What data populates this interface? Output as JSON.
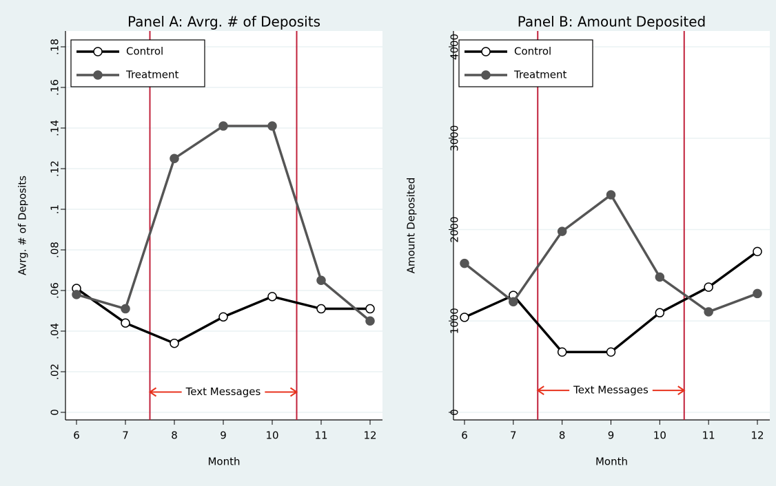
{
  "chart_data": [
    {
      "type": "line",
      "title": "Panel A: Avrg. # of Deposits",
      "x_label": "Month",
      "y_label": "Avrg. # of Deposits",
      "x": [
        6,
        7,
        8,
        9,
        10,
        11,
        12
      ],
      "xlim": [
        6,
        12
      ],
      "xticks": [
        6,
        7,
        8,
        9,
        10,
        11,
        12
      ],
      "ylim": [
        0,
        0.18
      ],
      "yticks": [
        0,
        {
          "value": 0.02,
          "label": ".02"
        },
        {
          "value": 0.04,
          "label": ".04"
        },
        {
          "value": 0.06,
          "label": ".06"
        },
        {
          "value": 0.08,
          "label": ".08"
        },
        {
          "value": 0.1,
          "label": ".1"
        },
        {
          "value": 0.12,
          "label": ".12"
        },
        {
          "value": 0.14,
          "label": ".14"
        },
        {
          "value": 0.16,
          "label": ".16"
        },
        {
          "value": 0.18,
          "label": ".18"
        }
      ],
      "grid": true,
      "legend": "top-left",
      "series": [
        {
          "name": "Control",
          "color": "#000000",
          "marker": "hollow",
          "values": [
            0.061,
            0.044,
            0.034,
            0.047,
            0.057,
            0.051,
            0.051
          ]
        },
        {
          "name": "Treatment",
          "color": "#555555",
          "marker": "filled",
          "values": [
            0.058,
            0.051,
            0.125,
            0.141,
            0.141,
            0.065,
            0.045
          ]
        }
      ],
      "reference_lines": [
        7.5,
        10.5
      ],
      "reference_color": "#c0203a",
      "annotation": {
        "text": "Text Messages",
        "from": 7.5,
        "to": 10.5,
        "y": 0.01,
        "color": "#e8321c"
      }
    },
    {
      "type": "line",
      "title": "Panel B: Amount Deposited",
      "x_label": "Month",
      "y_label": "Amount Deposited",
      "x": [
        6,
        7,
        8,
        9,
        10,
        11,
        12
      ],
      "xlim": [
        6,
        12
      ],
      "xticks": [
        6,
        7,
        8,
        9,
        10,
        11,
        12
      ],
      "ylim": [
        0,
        4000
      ],
      "yticks": [
        0,
        1000,
        2000,
        3000,
        4000
      ],
      "grid": true,
      "legend": "top-left",
      "series": [
        {
          "name": "Control",
          "color": "#000000",
          "marker": "hollow",
          "values": [
            1040,
            1280,
            660,
            660,
            1090,
            1370,
            1760
          ]
        },
        {
          "name": "Treatment",
          "color": "#555555",
          "marker": "filled",
          "values": [
            1630,
            1210,
            1980,
            2380,
            1480,
            1100,
            1300
          ]
        }
      ],
      "reference_lines": [
        7.5,
        10.5
      ],
      "reference_color": "#c0203a",
      "annotation": {
        "text": "Text Messages",
        "from": 7.5,
        "to": 10.5,
        "y": 240,
        "color": "#e8321c"
      }
    }
  ]
}
